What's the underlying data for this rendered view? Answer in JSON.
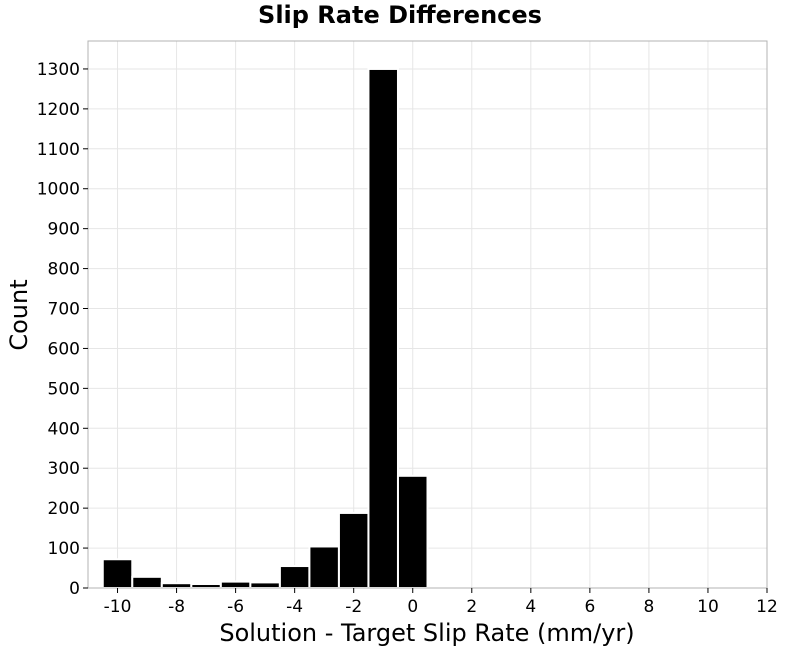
{
  "chart_data": {
    "type": "bar",
    "title": "Slip Rate Differences",
    "xlabel": "Solution - Target Slip Rate (mm/yr)",
    "ylabel": "Count",
    "xlim": [
      -11,
      12
    ],
    "ylim": [
      0,
      1370
    ],
    "x_ticks": [
      -10,
      -8,
      -6,
      -4,
      -2,
      0,
      2,
      4,
      6,
      8,
      10,
      12
    ],
    "y_ticks": [
      0,
      100,
      200,
      300,
      400,
      500,
      600,
      700,
      800,
      900,
      1000,
      1100,
      1200,
      1300
    ],
    "bin_width": 1,
    "x": [
      -10,
      -9,
      -8,
      -7,
      -6,
      -5,
      -4,
      -3,
      -2,
      -1,
      0,
      1
    ],
    "values": [
      72,
      28,
      12,
      10,
      16,
      14,
      55,
      104,
      188,
      1300,
      281,
      2
    ],
    "grid": true,
    "bar_color": "#000000",
    "edge_color": "#ffffff"
  }
}
